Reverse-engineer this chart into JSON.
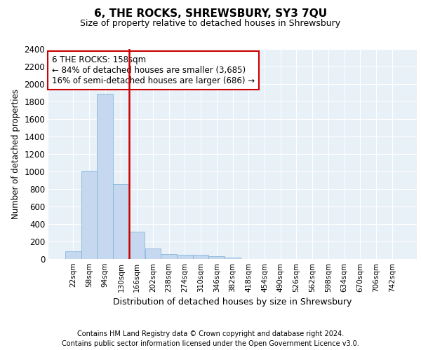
{
  "title": "6, THE ROCKS, SHREWSBURY, SY3 7QU",
  "subtitle": "Size of property relative to detached houses in Shrewsbury",
  "xlabel": "Distribution of detached houses by size in Shrewsbury",
  "ylabel": "Number of detached properties",
  "bar_labels": [
    "22sqm",
    "58sqm",
    "94sqm",
    "130sqm",
    "166sqm",
    "202sqm",
    "238sqm",
    "274sqm",
    "310sqm",
    "346sqm",
    "382sqm",
    "418sqm",
    "454sqm",
    "490sqm",
    "526sqm",
    "562sqm",
    "598sqm",
    "634sqm",
    "670sqm",
    "706sqm",
    "742sqm"
  ],
  "bar_values": [
    90,
    1010,
    1890,
    855,
    315,
    120,
    60,
    50,
    45,
    30,
    20,
    0,
    0,
    0,
    0,
    0,
    0,
    0,
    0,
    0,
    0
  ],
  "bar_color": "#c5d8ef",
  "bar_edge_color": "#7aafd4",
  "vline_color": "#cc0000",
  "annotation_text": "6 THE ROCKS: 158sqm\n← 84% of detached houses are smaller (3,685)\n16% of semi-detached houses are larger (686) →",
  "annotation_box_color": "#ffffff",
  "annotation_box_edge": "#cc0000",
  "ylim": [
    0,
    2400
  ],
  "yticks": [
    0,
    200,
    400,
    600,
    800,
    1000,
    1200,
    1400,
    1600,
    1800,
    2000,
    2200,
    2400
  ],
  "plot_bg_color": "#e8f0f8",
  "footer1": "Contains HM Land Registry data © Crown copyright and database right 2024.",
  "footer2": "Contains public sector information licensed under the Open Government Licence v3.0."
}
